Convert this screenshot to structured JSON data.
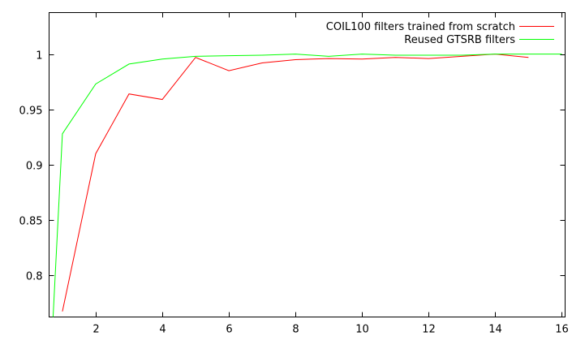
{
  "chart_data": {
    "type": "line",
    "title": "",
    "xlabel": "",
    "ylabel": "",
    "xlim": [
      0.6,
      16.1
    ],
    "ylim": [
      0.7625,
      1.0375
    ],
    "xticks": [
      2,
      4,
      6,
      8,
      10,
      12,
      14,
      16
    ],
    "yticks": [
      0.8,
      0.85,
      0.9,
      0.95,
      1
    ],
    "xtick_labels": [
      "2",
      "4",
      "6",
      "8",
      "10",
      "12",
      "14",
      "16"
    ],
    "ytick_labels": [
      "0.8",
      "0.85",
      "0.9",
      "0.95",
      "1"
    ],
    "grid": false,
    "legend_position": "top-right",
    "series": [
      {
        "name": "COIL100 filters trained from scratch",
        "color": "#ff0000",
        "x": [
          1,
          2,
          3,
          4,
          5,
          6,
          7,
          8,
          9,
          10,
          11,
          12,
          13,
          14,
          15
        ],
        "y": [
          0.7675,
          0.91,
          0.964,
          0.959,
          0.997,
          0.985,
          0.992,
          0.995,
          0.996,
          0.9955,
          0.997,
          0.996,
          0.998,
          1.0,
          0.997
        ]
      },
      {
        "name": "Reused GTSRB filters",
        "color": "#00ff00",
        "x": [
          0.72,
          1,
          2,
          3,
          4,
          5,
          6,
          7,
          8,
          9,
          10,
          11,
          12,
          13,
          14,
          15,
          16
        ],
        "y": [
          0.7625,
          0.928,
          0.973,
          0.991,
          0.9955,
          0.998,
          0.9985,
          0.999,
          1.0,
          0.998,
          1.0,
          0.999,
          0.999,
          0.999,
          1.0,
          1.0,
          1.0
        ]
      }
    ]
  }
}
